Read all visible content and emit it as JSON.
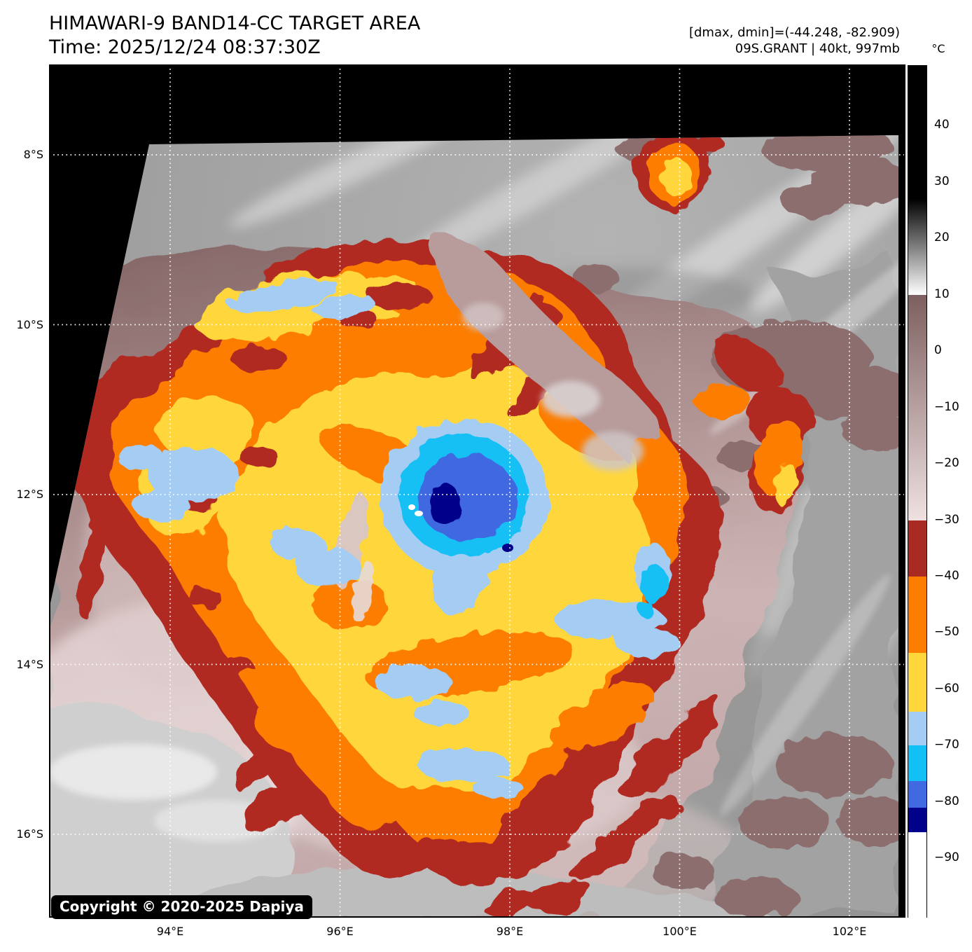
{
  "header": {
    "title": "HIMAWARI-9 BAND14-CC TARGET AREA",
    "time_line": "Time: 2025/12/24 08:37:30Z",
    "drange_line": "[dmax, dmin]=(-44.248, -82.909)",
    "storm_line": "09S.GRANT | 40kt, 997mb"
  },
  "watermark": {
    "text": "Copyright © 2020-2025 Dapiya"
  },
  "colorbar": {
    "unit_label": "°C",
    "scale": {
      "vmax": 50.6,
      "vmin": -100.4
    },
    "ticks": [
      {
        "value": 40,
        "label": "40"
      },
      {
        "value": 30,
        "label": "30"
      },
      {
        "value": 20,
        "label": "20"
      },
      {
        "value": 10,
        "label": "10"
      },
      {
        "value": 0,
        "label": "0"
      },
      {
        "value": -10,
        "label": "−10"
      },
      {
        "value": -20,
        "label": "−20"
      },
      {
        "value": -30,
        "label": "−30"
      },
      {
        "value": -40,
        "label": "−40"
      },
      {
        "value": -50,
        "label": "−50"
      },
      {
        "value": -60,
        "label": "−60"
      },
      {
        "value": -70,
        "label": "−70"
      },
      {
        "value": -80,
        "label": "−80"
      },
      {
        "value": -90,
        "label": "−90"
      }
    ],
    "segments": [
      {
        "from": 50.6,
        "to": 27,
        "color": "#000000"
      },
      {
        "from": 27,
        "to": 10,
        "color": "#000000",
        "color2": "#ffffff"
      },
      {
        "from": 10,
        "to": -30,
        "color": "#7d5f5f",
        "color2": "#f0e1e1"
      },
      {
        "from": -30,
        "to": -40,
        "color": "#a92a22"
      },
      {
        "from": -40,
        "to": -53.5,
        "color": "#fc7d00"
      },
      {
        "from": -53.5,
        "to": -64,
        "color": "#ffd73c"
      },
      {
        "from": -64,
        "to": -70,
        "color": "#a5cdf4"
      },
      {
        "from": -70,
        "to": -76.3,
        "color": "#12c0f5"
      },
      {
        "from": -76.3,
        "to": -81,
        "color": "#4169e1"
      },
      {
        "from": -81,
        "to": -85.3,
        "color": "#00008b"
      },
      {
        "from": -85.3,
        "to": -100.4,
        "color": "#ffffff"
      }
    ]
  },
  "map": {
    "lat_ticks": [
      {
        "value": 8,
        "label": "8°S"
      },
      {
        "value": 10,
        "label": "10°S"
      },
      {
        "value": 12,
        "label": "12°S"
      },
      {
        "value": 14,
        "label": "14°S"
      },
      {
        "value": 16,
        "label": "16°S"
      }
    ],
    "lon_ticks": [
      {
        "value": 94,
        "label": "94°E"
      },
      {
        "value": 96,
        "label": "96°E"
      },
      {
        "value": 98,
        "label": "98°E"
      },
      {
        "value": 100,
        "label": "100°E"
      },
      {
        "value": 102,
        "label": "102°E"
      }
    ],
    "gridline_color": "#ffffff",
    "background_color": "#000000"
  },
  "chart_data": {
    "type": "heatmap",
    "title": "HIMAWARI-9 BAND14-CC TARGET AREA",
    "time_utc": "2025/12/24 08:37:30Z",
    "satellite": "HIMAWARI-9",
    "band": "BAND14-CC",
    "product": "infrared brightness temperature, target area sector",
    "storm": {
      "id": "09S",
      "name": "GRANT",
      "intensity_kt": 40,
      "pressure_mb": 997
    },
    "dmax_c": -44.248,
    "dmin_c": -82.909,
    "x_axis": {
      "label": "longitude",
      "ticks_deg_e": [
        94,
        96,
        98,
        100,
        102
      ],
      "grid": true
    },
    "y_axis": {
      "label": "latitude",
      "ticks_deg_s": [
        8,
        10,
        12,
        14,
        16
      ],
      "grid": true
    },
    "colorbar": {
      "unit": "°C",
      "range": [
        -100.4,
        50.6
      ],
      "ticks": [
        40,
        30,
        20,
        10,
        0,
        -10,
        -20,
        -30,
        -40,
        -50,
        -60,
        -70,
        -80,
        -90
      ]
    },
    "notable_features": {
      "eye_coldest_cloud_center": {
        "lon_e": 97.9,
        "lat_s": 12.1,
        "approx_temp_c": -83
      },
      "cold_dense_overcast_temp_c_range": [
        -55,
        -65
      ],
      "warm_environment_temp_c_range": [
        10,
        -25
      ]
    },
    "legend_position": "right-colorbar"
  }
}
